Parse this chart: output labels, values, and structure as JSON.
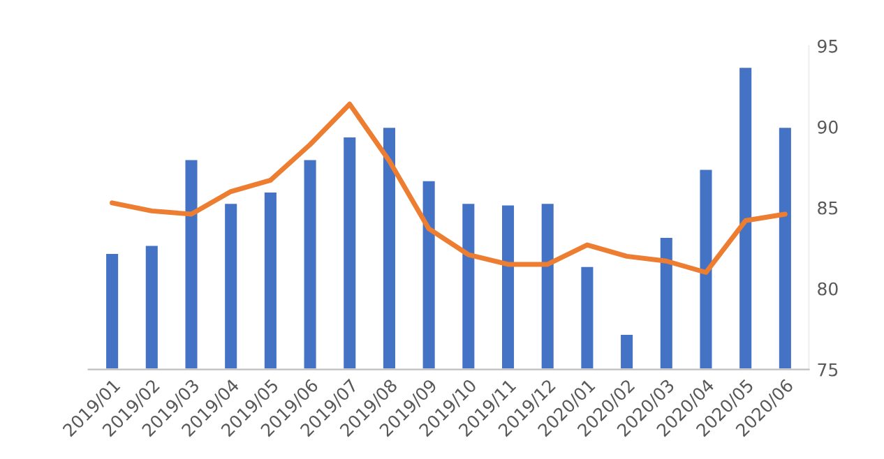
{
  "chart_data": {
    "type": "bar",
    "categories": [
      "2019/01",
      "2019/02",
      "2019/03",
      "2019/04",
      "2019/05",
      "2019/06",
      "2019/07",
      "2019/08",
      "2019/09",
      "2019/10",
      "2019/11",
      "2019/12",
      "2020/01",
      "2020/02",
      "2020/03",
      "2020/04",
      "2020/05",
      "2020/06"
    ],
    "series": [
      {
        "color": "#4472c4",
        "values": [
          82.2,
          82.7,
          88.0,
          85.3,
          86.0,
          88.0,
          89.4,
          90.0,
          86.7,
          85.3,
          85.2,
          85.3,
          81.4,
          77.2,
          83.2,
          87.4,
          93.7,
          90.0
        ]
      },
      {
        "type": "line",
        "color": "#ed7d31",
        "values": [
          85.3,
          84.8,
          84.6,
          86.0,
          86.7,
          88.9,
          91.4,
          87.9,
          83.7,
          82.1,
          81.5,
          81.5,
          82.7,
          82.0,
          81.7,
          81.0,
          84.2,
          84.6
        ]
      }
    ],
    "ylim": [
      75,
      95
    ],
    "yticks": [
      75,
      80,
      85,
      90,
      95
    ],
    "grid": false,
    "legend": false,
    "marker": "none",
    "line_style": "solid"
  }
}
